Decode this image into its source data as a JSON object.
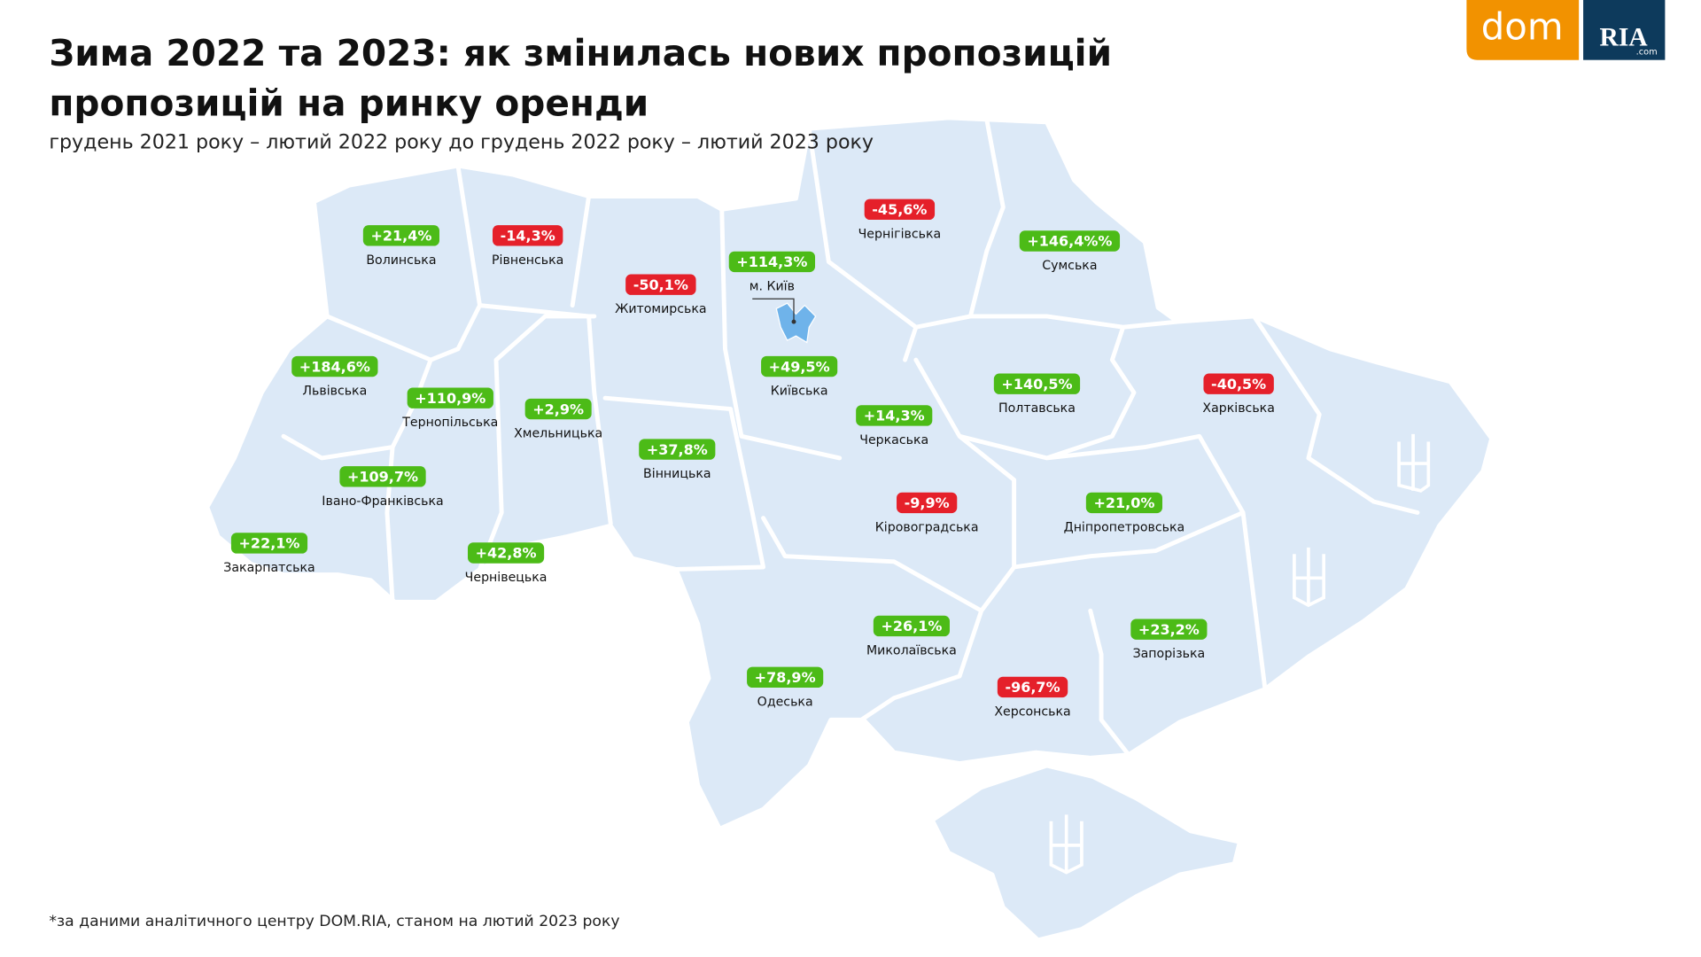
{
  "header": {
    "title_lines": [
      "Зима 2022 та 2023: як змінилась нових пропозицій",
      "пропозицій на ринку оренди"
    ],
    "subtitle": "грудень 2021 року – лютий 2022 року до грудень 2022 року – лютий 2023 року"
  },
  "logo": {
    "dom": "dom",
    "ria": "RIA",
    "com": ".com"
  },
  "regions": [
    {
      "name": "Волинська",
      "change": "+21,4%"
    },
    {
      "name": "Рівненська",
      "change": "-14,3%"
    },
    {
      "name": "Житомирська",
      "change": "-50,1%"
    },
    {
      "name": "м. Київ",
      "change": "+114,3%"
    },
    {
      "name": "Чернігівська",
      "change": "-45,6%"
    },
    {
      "name": "Сумська",
      "change": "+146,4%%"
    },
    {
      "name": "Львівська",
      "change": "+184,6%"
    },
    {
      "name": "Тернопільська",
      "change": "+110,9%"
    },
    {
      "name": "Хмельницька",
      "change": "+2,9%"
    },
    {
      "name": "Вінницька",
      "change": "+37,8%"
    },
    {
      "name": "Київська",
      "change": "+49,5%"
    },
    {
      "name": "Черкаська",
      "change": "+14,3%"
    },
    {
      "name": "Полтавська",
      "change": "+140,5%"
    },
    {
      "name": "Харківська",
      "change": "-40,5%"
    },
    {
      "name": "Івано-Франківська",
      "change": "+109,7%"
    },
    {
      "name": "Закарпатська",
      "change": "+22,1%"
    },
    {
      "name": "Чернівецька",
      "change": "+42,8%"
    },
    {
      "name": "Кіровоградська",
      "change": "-9,9%"
    },
    {
      "name": "Дніпропетровська",
      "change": "+21,0%"
    },
    {
      "name": "Миколаївська",
      "change": "+26,1%"
    },
    {
      "name": "Запорізька",
      "change": "+23,2%"
    },
    {
      "name": "Одеська",
      "change": "+78,9%"
    },
    {
      "name": "Херсонська",
      "change": "-96,7%"
    }
  ],
  "footnote": "*за даними аналітичного центру DOM.RIA, станом на лютий 2023 року"
}
